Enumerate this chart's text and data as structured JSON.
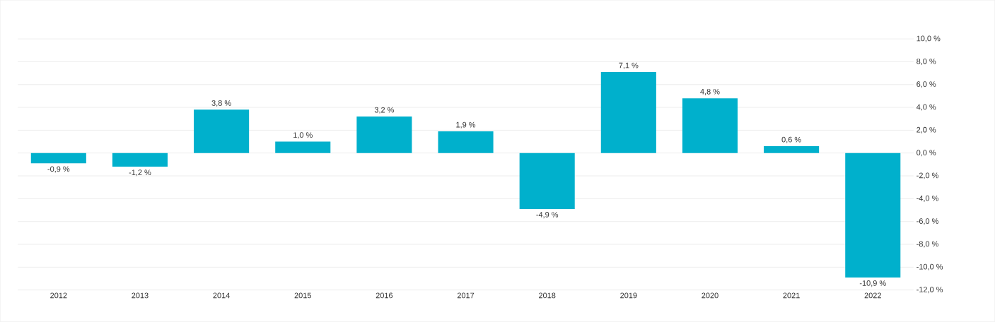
{
  "chart_data": {
    "type": "bar",
    "categories": [
      "2012",
      "2013",
      "2014",
      "2015",
      "2016",
      "2017",
      "2018",
      "2019",
      "2020",
      "2021",
      "2022"
    ],
    "values": [
      -0.9,
      -1.2,
      3.8,
      1.0,
      3.2,
      1.9,
      -4.9,
      7.1,
      4.8,
      0.6,
      -10.9
    ],
    "color": "#00b0cc",
    "value_labels": [
      "-0,9 %",
      "-1,2 %",
      "3,8 %",
      "1,0 %",
      "3,2 %",
      "1,9 %",
      "-4,9 %",
      "7,1 %",
      "4,8 %",
      "0,6 %",
      "-10,9 %"
    ],
    "ylim": [
      -12,
      10
    ],
    "yticks": [
      {
        "value": 10,
        "label": "10,0 %"
      },
      {
        "value": 8,
        "label": "8,0 %"
      },
      {
        "value": 6,
        "label": "6,0 %"
      },
      {
        "value": 4,
        "label": "4,0 %"
      },
      {
        "value": 2,
        "label": "2,0 %"
      },
      {
        "value": 0,
        "label": "0,0 %"
      },
      {
        "value": -2,
        "label": "-2,0 %"
      },
      {
        "value": -4,
        "label": "-4,0 %"
      },
      {
        "value": -6,
        "label": "-6,0 %"
      },
      {
        "value": -8,
        "label": "-8,0 %"
      },
      {
        "value": -10,
        "label": "-10,0 %"
      },
      {
        "value": -12,
        "label": "-12,0 %"
      }
    ],
    "grid": "y"
  }
}
